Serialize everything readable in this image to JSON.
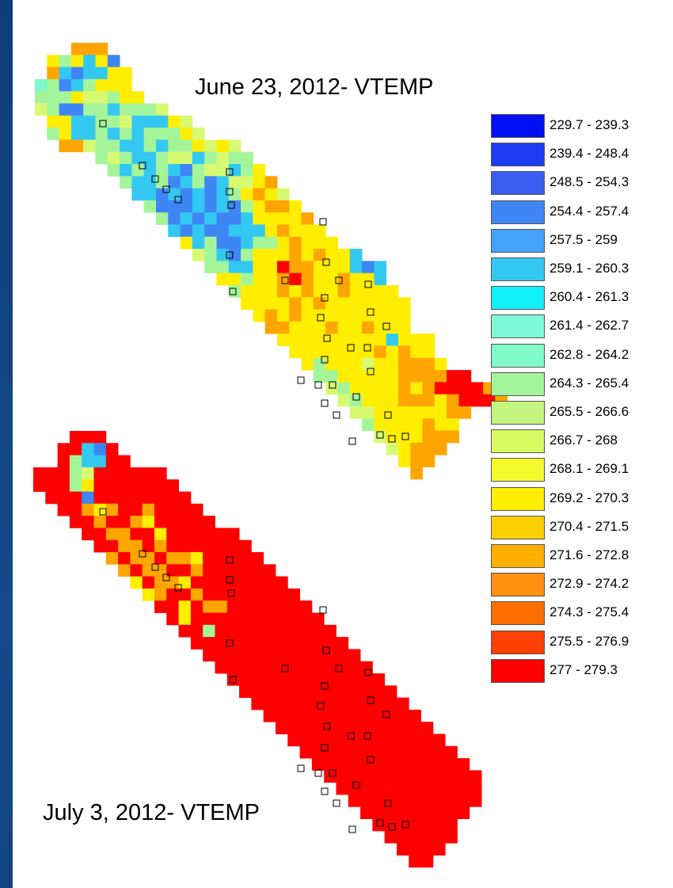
{
  "maps": [
    {
      "id": "map-june",
      "title": "June 23, 2012- VTEMP",
      "rows": [
        {
          "c": 3,
          "v": "ooo"
        },
        {
          "c": 1,
          "v": "ygycyb"
        },
        {
          "c": 1,
          "v": "ocbccyy"
        },
        {
          "c": 0,
          "v": "tgbcgyyy"
        },
        {
          "c": 0,
          "v": "gggyllgyy"
        },
        {
          "c": 0,
          "v": "lgbbggcgggl"
        },
        {
          "c": 1,
          "v": "yyccgglcccyl"
        },
        {
          "c": 1,
          "v": "gyccgcgcgggyl"
        },
        {
          "c": 2,
          "v": "oolggccgcggylyl"
        },
        {
          "c": 5,
          "v": "glgccgllcglgg"
        },
        {
          "c": 6,
          "v": "gcgcgcbgllcgy"
        },
        {
          "c": 7,
          "v": "gccgbcgbcllyo"
        },
        {
          "c": 8,
          "v": "ccbcbcbcgyoyl"
        },
        {
          "c": 9,
          "v": "gbbbcbcbgyooy"
        },
        {
          "c": 10,
          "v": "gbcbcbbcyyyyo"
        },
        {
          "c": 11,
          "v": "cbcbbcccyoyyy"
        },
        {
          "c": 12,
          "v": "ycgbbcggyoyyy"
        },
        {
          "c": 13,
          "v": "lgcbgyyyoyoyyc"
        },
        {
          "c": 14,
          "v": "ggccyyrooyyycbc"
        },
        {
          "c": 15,
          "v": "yygyyoroyyoyyc"
        },
        {
          "c": 16,
          "v": "gyyyoyoyyoyyyy"
        },
        {
          "c": 17,
          "v": "yyyyoyoyyyyyyy"
        },
        {
          "c": 18,
          "v": "yoyoyyyyyyyyy"
        },
        {
          "c": 19,
          "v": "ooyyyoyyoyyy"
        },
        {
          "c": 20,
          "v": "yyyyyyyyycyyy"
        },
        {
          "c": 21,
          "v": "yyyyyyyoyoyy"
        },
        {
          "c": 22,
          "v": "ygyyylyyoooy"
        },
        {
          "c": 23,
          "v": "ggyyyyyoooorr"
        },
        {
          "c": 24,
          "v": "lgyyyyoyorrrro"
        },
        {
          "c": 25,
          "v": "lgyyyoooyorrro"
        },
        {
          "c": 26,
          "v": "llyyyyyyoo"
        },
        {
          "c": 27,
          "v": "gyyyyoyy"
        },
        {
          "c": 28,
          "v": "lyyyooo"
        },
        {
          "c": 29,
          "v": "lyooo"
        },
        {
          "c": 30,
          "v": "yoo"
        },
        {
          "c": 31,
          "v": "o"
        }
      ]
    },
    {
      "id": "map-july",
      "title": "July 3, 2012- VTEMP",
      "rows": [
        {
          "c": 3,
          "v": "rrr"
        },
        {
          "c": 2,
          "v": "rrcbr"
        },
        {
          "c": 2,
          "v": "rgccrr"
        },
        {
          "c": 0,
          "v": "rrrglrrrrrr"
        },
        {
          "c": 0,
          "v": "rrrgyrrrrrrr"
        },
        {
          "c": 1,
          "v": "rrrbrrrrrrrr"
        },
        {
          "c": 2,
          "v": "rroyorrorrrr"
        },
        {
          "c": 3,
          "v": "rrorroyrrrrr"
        },
        {
          "c": 4,
          "v": "rroorryrrrrrr"
        },
        {
          "c": 5,
          "v": "rroororrrrrrr"
        },
        {
          "c": 6,
          "v": "oroorooyrrrrr"
        },
        {
          "c": 7,
          "v": "oroorrorrrrrr"
        },
        {
          "c": 8,
          "v": "yrooyrrrrrrrr"
        },
        {
          "c": 9,
          "v": "yorrorrrrrrrr"
        },
        {
          "c": 10,
          "v": "rryroorrrrrrr"
        },
        {
          "c": 11,
          "v": "ryrrrrrrrrrrr"
        },
        {
          "c": 12,
          "v": "rrgrrrrrrrrrr"
        },
        {
          "c": 13,
          "v": "rrrrrrrrrrrrr"
        },
        {
          "c": 14,
          "v": "rrrrrrrrrrrrr"
        },
        {
          "c": 15,
          "v": "rrrrrrrrrrrrr"
        },
        {
          "c": 16,
          "v": "rrrrrrrrrrrrr"
        },
        {
          "c": 17,
          "v": "rrrrrrrrrrrrr"
        },
        {
          "c": 18,
          "v": "rrrrrrrrrrrrr"
        },
        {
          "c": 19,
          "v": "rrrrrrrrrrrrr"
        },
        {
          "c": 20,
          "v": "rrrrrrrrrrrrr"
        },
        {
          "c": 21,
          "v": "rrrrrrrrrrrrr"
        },
        {
          "c": 22,
          "v": "rrrrrrrrrrrrr"
        },
        {
          "c": 23,
          "v": "rrrrrrrrrrrrr"
        },
        {
          "c": 24,
          "v": "rrrrrrrrrrrrr"
        },
        {
          "c": 25,
          "v": "rrrrrrrrrrrr"
        },
        {
          "c": 26,
          "v": "rrrrrrrrrrr"
        },
        {
          "c": 27,
          "v": "rrrrrrrrr"
        },
        {
          "c": 28,
          "v": "rrrrrrr"
        },
        {
          "c": 29,
          "v": "rrrrrr"
        },
        {
          "c": 30,
          "v": "rrrr"
        },
        {
          "c": 31,
          "v": "rr"
        }
      ]
    }
  ],
  "cell_colors": {
    "b": "#3f86f5",
    "c": "#33c8f2",
    "t": "#7ffac8",
    "g": "#a4f59a",
    "l": "#d8fa72",
    "y": "#ffee00",
    "o": "#ffa500",
    "r": "#ff0000"
  },
  "legend": [
    {
      "label": "229.7 - 239.3",
      "color": "#0010f5"
    },
    {
      "label": "239.4 - 248.4",
      "color": "#1e3cf2"
    },
    {
      "label": "248.5 - 254.3",
      "color": "#3a5cf0"
    },
    {
      "label": "254.4 - 257.4",
      "color": "#3f86f5"
    },
    {
      "label": "257.5 - 259",
      "color": "#43a2fa"
    },
    {
      "label": "259.1 - 260.3",
      "color": "#33c8f2"
    },
    {
      "label": "260.4 - 261.3",
      "color": "#12f0fa"
    },
    {
      "label": "261.4 - 262.7",
      "color": "#7ffad8"
    },
    {
      "label": "262.8 - 264.2",
      "color": "#7ffac8"
    },
    {
      "label": "264.3 - 265.4",
      "color": "#a4f59a"
    },
    {
      "label": "265.5 - 266.6",
      "color": "#c4f57e"
    },
    {
      "label": "266.7 - 268",
      "color": "#d8fa60"
    },
    {
      "label": "268.1 - 269.1",
      "color": "#f5fa2c"
    },
    {
      "label": "269.2 - 270.3",
      "color": "#ffee00"
    },
    {
      "label": "270.4 - 271.5",
      "color": "#ffd000"
    },
    {
      "label": "271.6 - 272.8",
      "color": "#ffb000"
    },
    {
      "label": "272.9 - 274.2",
      "color": "#ff9010"
    },
    {
      "label": "274.3 - 275.4",
      "color": "#ff6e00"
    },
    {
      "label": "275.5 - 276.9",
      "color": "#ff4000"
    },
    {
      "label": "277 - 279.3",
      "color": "#ff0000"
    }
  ]
}
